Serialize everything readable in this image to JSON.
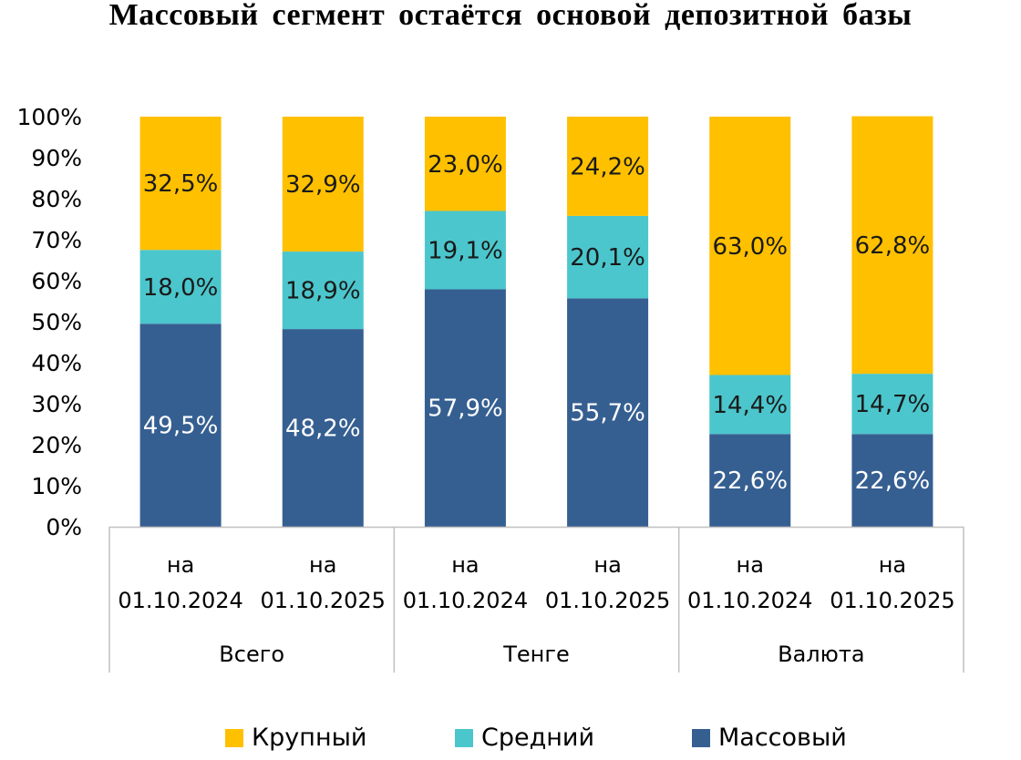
{
  "chart_data": {
    "type": "bar",
    "stacked": true,
    "title": "Массовый сегмент остаётся основой депозитной базы",
    "yticks": [
      "0%",
      "10%",
      "20%",
      "30%",
      "40%",
      "50%",
      "60%",
      "70%",
      "80%",
      "90%",
      "100%"
    ],
    "ylim": [
      0,
      100
    ],
    "groups": [
      {
        "label": "Всего",
        "categories": [
          {
            "line1": "на",
            "line2": "01.10.2024"
          },
          {
            "line1": "на",
            "line2": "01.10.2025"
          }
        ]
      },
      {
        "label": "Тенге",
        "categories": [
          {
            "line1": "на",
            "line2": "01.10.2024"
          },
          {
            "line1": "на",
            "line2": "01.10.2025"
          }
        ]
      },
      {
        "label": "Валюта",
        "categories": [
          {
            "line1": "на",
            "line2": "01.10.2024"
          },
          {
            "line1": "на",
            "line2": "01.10.2025"
          }
        ]
      }
    ],
    "series": [
      {
        "name": "Массовый",
        "color": "#365f91",
        "label_color": "#ffffff",
        "values": [
          49.5,
          48.2,
          57.9,
          55.7,
          22.6,
          22.6
        ],
        "labels": [
          "49,5%",
          "48,2%",
          "57,9%",
          "55,7%",
          "22,6%",
          "22,6%"
        ]
      },
      {
        "name": "Средний",
        "color": "#4bc6cc",
        "label_color": "#1a1a1a",
        "values": [
          18.0,
          18.9,
          19.1,
          20.1,
          14.4,
          14.7
        ],
        "labels": [
          "18,0%",
          "18,9%",
          "19,1%",
          "20,1%",
          "14,4%",
          "14,7%"
        ]
      },
      {
        "name": "Крупный",
        "color": "#ffc000",
        "label_color": "#1a1a1a",
        "values": [
          32.5,
          32.9,
          23.0,
          24.2,
          63.0,
          62.8
        ],
        "labels": [
          "32,5%",
          "32,9%",
          "23,0%",
          "24,2%",
          "63,0%",
          "62,8%"
        ]
      }
    ],
    "legend": [
      "Крупный",
      "Средний",
      "Массовый"
    ],
    "legend_position": "bottom"
  }
}
